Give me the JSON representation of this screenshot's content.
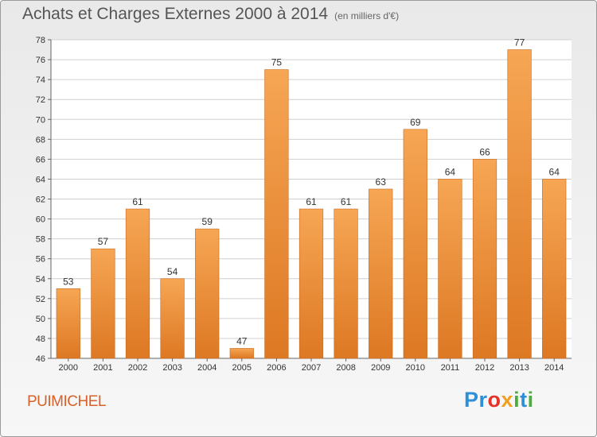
{
  "header": {
    "title": "Achats et Charges Externes 2000 à 2014",
    "unit": "(en milliers d'€)"
  },
  "footer": {
    "commune": "PUIMICHEL",
    "logo_text": "Proxiti"
  },
  "colors": {
    "bar_top": "#f6a654",
    "bar_bottom": "#dd7823",
    "bar_edge": "#c86a1d",
    "grid": "#d0d0d0"
  },
  "chart_data": {
    "type": "bar",
    "title": "Achats et Charges Externes 2000 à 2014",
    "subtitle": "(en milliers d'€)",
    "xlabel": "",
    "ylabel": "",
    "categories": [
      "2000",
      "2001",
      "2002",
      "2003",
      "2004",
      "2005",
      "2006",
      "2007",
      "2008",
      "2009",
      "2010",
      "2011",
      "2012",
      "2013",
      "2014"
    ],
    "values": [
      53,
      57,
      61,
      54,
      59,
      47,
      75,
      61,
      61,
      63,
      69,
      64,
      66,
      77,
      64
    ],
    "ylim": [
      46,
      78
    ],
    "yticks": [
      46,
      48,
      50,
      52,
      54,
      56,
      58,
      60,
      62,
      64,
      66,
      68,
      70,
      72,
      74,
      76,
      78
    ],
    "grid": true,
    "data_labels": true
  }
}
